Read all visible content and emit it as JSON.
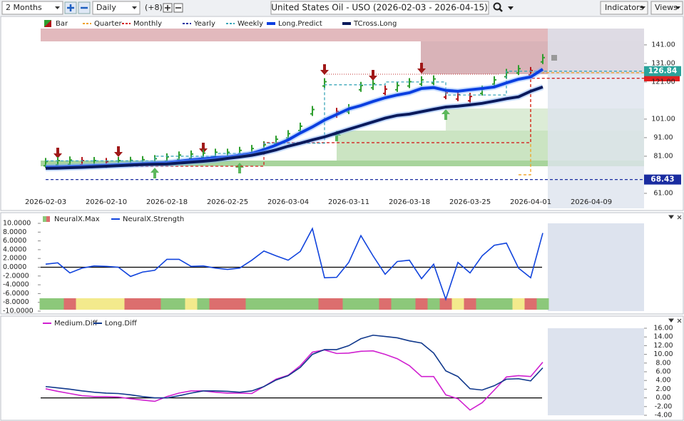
{
  "toolbar": {
    "period": "2 Months",
    "interval": "Daily",
    "offset": "(+8)",
    "symbol": "United States Oil - USO (2026-02-03 - 2026-04-15)",
    "indicators": "Indicators",
    "views": "Views"
  },
  "chart_data": [
    {
      "type": "price",
      "categories": [
        "2026-02-03",
        null,
        null,
        null,
        null,
        "2026-02-10",
        null,
        null,
        null,
        null,
        "2026-02-18",
        null,
        null,
        null,
        null,
        "2026-02-25",
        null,
        null,
        null,
        null,
        "2026-03-04",
        null,
        null,
        null,
        null,
        "2026-03-11",
        null,
        null,
        null,
        null,
        "2026-03-18",
        null,
        null,
        null,
        null,
        "2026-03-25",
        null,
        null,
        null,
        null,
        "2026-04-01",
        null,
        null,
        null,
        null,
        "2026-04-09",
        null,
        null,
        null,
        null
      ],
      "ylim": [
        52.9,
        149.8
      ],
      "yticks": [
        {
          "value": 141,
          "label": "141.00"
        },
        {
          "value": 131,
          "label": "131.00"
        },
        {
          "value": 121,
          "label": "121.00"
        },
        {
          "value": 101,
          "label": "101.00"
        },
        {
          "value": 91,
          "label": "91.00"
        },
        {
          "value": 81,
          "label": "81.00"
        },
        {
          "value": 61,
          "label": "61.00"
        }
      ],
      "series": [
        {
          "name": "Bar",
          "style": "bar",
          "up_color": "#2e9e2e",
          "down_color": "#b3161b",
          "values": [
            77,
            77.5,
            77.8,
            77.5,
            77.5,
            77,
            77.5,
            77.6,
            78,
            78.5,
            79.5,
            80.5,
            81,
            81.5,
            82,
            82,
            83,
            84,
            86,
            89,
            92,
            96,
            105,
            120,
            104,
            106,
            118,
            119,
            116,
            118,
            120,
            121,
            121.5,
            114,
            113,
            112,
            116,
            121,
            125,
            127,
            126,
            133,
            null,
            null,
            null,
            null,
            null,
            null,
            null,
            null
          ]
        },
        {
          "name": "Quarter",
          "style": "step",
          "color": "#f0a020",
          "values": [
            null,
            null,
            null,
            null,
            null,
            null,
            null,
            null,
            null,
            null,
            null,
            null,
            null,
            null,
            null,
            null,
            null,
            null,
            null,
            null,
            null,
            null,
            null,
            null,
            null,
            null,
            null,
            null,
            null,
            null,
            null,
            null,
            null,
            null,
            null,
            null,
            null,
            null,
            null,
            71,
            126,
            126,
            126,
            126,
            126,
            126,
            126,
            126,
            126,
            126
          ]
        },
        {
          "name": "Monthly",
          "style": "step",
          "color": "#d42020",
          "values": [
            75.6,
            75.6,
            75.6,
            75.6,
            75.6,
            75.6,
            75.6,
            75.6,
            75.6,
            75.6,
            75.6,
            75.6,
            75.6,
            75.6,
            75.6,
            75.6,
            75.6,
            75.6,
            88.3,
            88.3,
            88.3,
            88.3,
            88.3,
            88.3,
            88.3,
            88.3,
            88.3,
            88.3,
            88.3,
            88.3,
            88.3,
            88.3,
            88.3,
            88.3,
            88.3,
            88.3,
            88.3,
            88.3,
            88.3,
            88.3,
            123,
            123,
            123,
            123,
            123,
            123,
            123,
            123,
            123,
            123
          ]
        },
        {
          "name": "Yearly",
          "style": "step",
          "color": "#1a2ca0",
          "values": [
            68.43,
            68.43,
            68.43,
            68.43,
            68.43,
            68.43,
            68.43,
            68.43,
            68.43,
            68.43,
            68.43,
            68.43,
            68.43,
            68.43,
            68.43,
            68.43,
            68.43,
            68.43,
            68.43,
            68.43,
            68.43,
            68.43,
            68.43,
            68.43,
            68.43,
            68.43,
            68.43,
            68.43,
            68.43,
            68.43,
            68.43,
            68.43,
            68.43,
            68.43,
            68.43,
            68.43,
            68.43,
            68.43,
            68.43,
            68.43,
            68.43,
            68.43,
            68.43,
            68.43,
            68.43,
            68.43,
            68.43,
            68.43,
            68.43,
            68.43
          ]
        },
        {
          "name": "Weekly",
          "style": "step",
          "color": "#3aa6b9",
          "values": [
            78.5,
            78.5,
            78.5,
            78.5,
            78.5,
            78.5,
            78.5,
            78.5,
            78.5,
            81,
            81,
            81,
            81,
            81,
            82.5,
            82.5,
            82.5,
            82.5,
            88,
            88,
            88,
            88,
            88,
            119.5,
            119.5,
            119.5,
            119.5,
            119.5,
            121,
            121,
            121,
            121,
            121,
            114,
            114,
            114,
            114,
            114,
            126.8,
            126.8,
            126.8,
            126.8,
            126.8,
            126.8,
            126.8,
            126.8,
            126.8,
            126.8,
            126.8,
            126.8
          ]
        },
        {
          "name": "Long.Predict",
          "style": "thick",
          "color": "#0b3fe0",
          "values": [
            75.2,
            75.3,
            75.5,
            75.7,
            75.9,
            76.1,
            76.4,
            76.7,
            77,
            77.3,
            77.6,
            78.3,
            79,
            79.6,
            80.2,
            80.6,
            81.5,
            82.5,
            84.5,
            87,
            89.8,
            93.5,
            96.8,
            100.5,
            103.5,
            106.5,
            108.3,
            110.5,
            112.5,
            114,
            115.2,
            117.5,
            118,
            116.5,
            116,
            116.8,
            117.5,
            118.3,
            120.5,
            122.5,
            123.7,
            127.9,
            null,
            null,
            null,
            null,
            null,
            null,
            null,
            null
          ]
        },
        {
          "name": "TCross.Long",
          "style": "thick",
          "color": "#0a1a5c",
          "values": [
            74.5,
            74.6,
            74.8,
            75,
            75.3,
            75.6,
            75.9,
            76.2,
            76.5,
            76.7,
            76.8,
            77.3,
            77.8,
            78.3,
            78.9,
            79.8,
            80.6,
            81.5,
            82.8,
            84.4,
            86.4,
            88,
            89.8,
            91.4,
            93.5,
            95.5,
            97.5,
            99.5,
            101.5,
            103,
            103.7,
            105,
            106.3,
            107.5,
            108,
            108.7,
            109.5,
            110.7,
            112,
            113,
            116,
            118.3,
            null,
            null,
            null,
            null,
            null,
            null,
            null,
            null
          ]
        }
      ],
      "markers": [
        {
          "value": 126.84,
          "color": "#2aa39b"
        },
        {
          "value": 68.43,
          "color": "#1a2ca0"
        }
      ]
    },
    {
      "type": "line",
      "ylim": [
        -10,
        10
      ],
      "yticks": [
        {
          "value": 10,
          "label": "10.0000"
        },
        {
          "value": 8,
          "label": "8.0000"
        },
        {
          "value": 6,
          "label": "6.0000"
        },
        {
          "value": 4,
          "label": "4.0000"
        },
        {
          "value": 2,
          "label": "2.0000"
        },
        {
          "value": 0,
          "label": "0.0000"
        },
        {
          "value": -2,
          "label": "-2.0000"
        },
        {
          "value": -4,
          "label": "-4.0000"
        },
        {
          "value": -6,
          "label": "-6.0000"
        },
        {
          "value": -8,
          "label": "-8.0000"
        },
        {
          "value": -10,
          "label": "-10.0000"
        }
      ],
      "series": [
        {
          "name": "NeuralX.Max",
          "style": "cells",
          "colors": [
            "#8cc87a",
            "#8cc87a",
            "#dc6e6e",
            "#f3ea8c",
            "#f3ea8c",
            "#f3ea8c",
            "#f3ea8c",
            "#dc6e6e",
            "#dc6e6e",
            "#dc6e6e",
            "#8cc87a",
            "#8cc87a",
            "#f3ea8c",
            "#8cc87a",
            "#dc6e6e",
            "#dc6e6e",
            "#dc6e6e",
            "#8cc87a",
            "#8cc87a",
            "#8cc87a",
            "#8cc87a",
            "#8cc87a",
            "#8cc87a",
            "#dc6e6e",
            "#dc6e6e",
            "#8cc87a",
            "#8cc87a",
            "#8cc87a",
            "#dc6e6e",
            "#8cc87a",
            "#8cc87a",
            "#dc6e6e",
            "#8cc87a",
            "#dc6e6e",
            "#f3ea8c",
            "#dc6e6e",
            "#8cc87a",
            "#8cc87a",
            "#8cc87a",
            "#f3ea8c",
            "#dc6e6e",
            "#8cc87a",
            null,
            null,
            null,
            null,
            null,
            null,
            null,
            null
          ]
        },
        {
          "name": "NeuralX.Strength",
          "style": "line",
          "color": "#1144dd",
          "values": [
            0.7,
            1,
            -1.3,
            -0.2,
            0.3,
            0.2,
            0,
            -2.1,
            -1.1,
            -0.7,
            1.8,
            1.8,
            0.2,
            0.3,
            -0.2,
            -0.5,
            -0.2,
            1.6,
            3.7,
            2.6,
            1.6,
            3.6,
            8.8,
            -2.4,
            -2.3,
            1.1,
            7.2,
            2.6,
            -1.6,
            1.3,
            1.6,
            -2.6,
            0.7,
            -7.3,
            1.1,
            -1.3,
            2.6,
            5,
            5.5,
            -0.2,
            -2.4,
            7.8,
            null,
            null,
            null,
            null,
            null,
            null,
            null,
            null
          ]
        }
      ]
    },
    {
      "type": "line",
      "ylim": [
        -4,
        16
      ],
      "yticks": [
        {
          "value": 16,
          "label": "16.00"
        },
        {
          "value": 14,
          "label": "14.00"
        },
        {
          "value": 12,
          "label": "12.00"
        },
        {
          "value": 10,
          "label": "10.00"
        },
        {
          "value": 8,
          "label": "8.00"
        },
        {
          "value": 6,
          "label": "6.00"
        },
        {
          "value": 4,
          "label": "4.00"
        },
        {
          "value": 2,
          "label": "2.00"
        },
        {
          "value": 0,
          "label": "0.00"
        },
        {
          "value": -2,
          "label": "-2.00"
        },
        {
          "value": -4,
          "label": "-4.00"
        }
      ],
      "series": [
        {
          "name": "Medium.Diff",
          "style": "line",
          "color": "#d020d0",
          "values": [
            2.1,
            1.5,
            1,
            0.5,
            0.3,
            0.3,
            0.2,
            -0.2,
            -0.5,
            -0.8,
            0.3,
            1.1,
            1.6,
            1.6,
            1.3,
            1.1,
            1.1,
            1,
            2.6,
            4.3,
            5.2,
            7.4,
            10.5,
            11,
            10.2,
            10.3,
            10.7,
            10.8,
            10,
            9,
            7.4,
            4.9,
            4.9,
            0.7,
            -0.2,
            -2.8,
            -1.1,
            1.8,
            4.8,
            5.1,
            4.9,
            8.2,
            null,
            null,
            null,
            null,
            null,
            null,
            null,
            null
          ]
        },
        {
          "name": "Long.Diff",
          "style": "line",
          "color": "#10388c",
          "values": [
            2.6,
            2.3,
            2,
            1.6,
            1.3,
            1.1,
            1,
            0.7,
            0.3,
            0,
            0,
            0.5,
            1.1,
            1.6,
            1.6,
            1.5,
            1.3,
            1.6,
            2.6,
            4.1,
            5.1,
            7,
            10,
            11.1,
            11.1,
            12,
            13.6,
            14.4,
            14.1,
            13.8,
            13.1,
            12.6,
            10.3,
            6.2,
            4.9,
            2.1,
            1.8,
            2.8,
            4.3,
            4.4,
            3.9,
            6.9,
            null,
            null,
            null,
            null,
            null,
            null,
            null,
            null
          ]
        }
      ]
    }
  ]
}
